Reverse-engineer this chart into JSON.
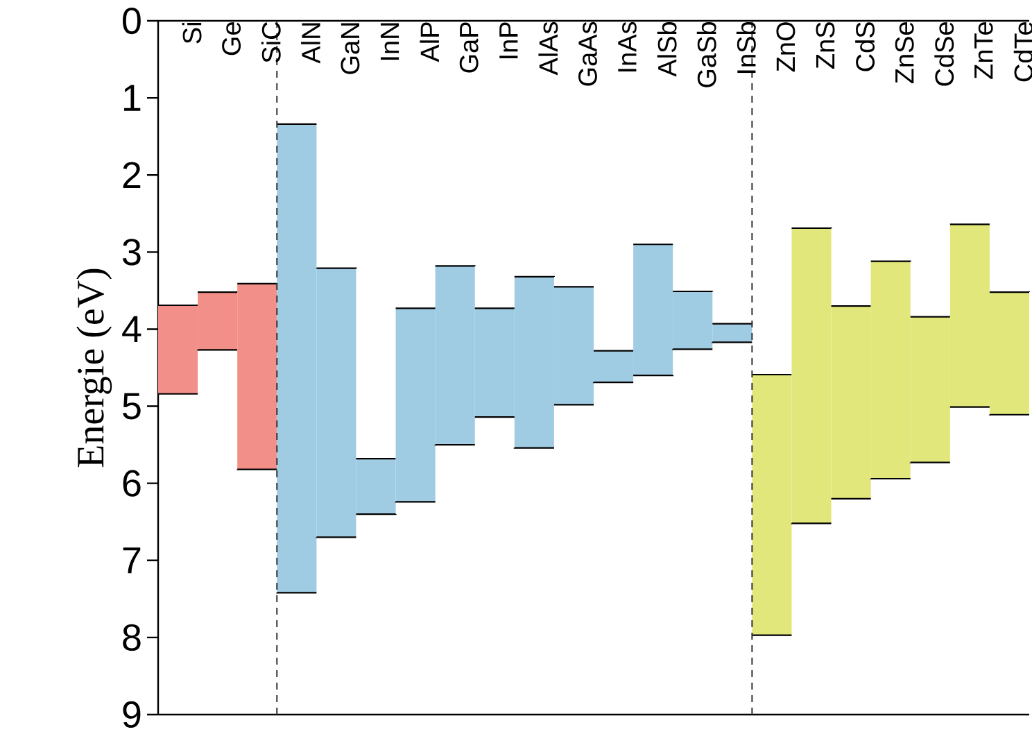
{
  "chart_data": {
    "type": "bar",
    "ylabel": "Energie (eV)",
    "categories": [
      "Si",
      "Ge",
      "SiC",
      "AlN",
      "GaN",
      "InN",
      "AlP",
      "GaP",
      "InP",
      "AlAs",
      "GaAs",
      "InAs",
      "AlSb",
      "GaSb",
      "InSb",
      "ZnO",
      "ZnS",
      "CdS",
      "ZnSe",
      "CdSe",
      "ZnTe",
      "CdTe"
    ],
    "series": [
      {
        "color": "#f28f88",
        "base": [
          3.69,
          3.52,
          3.41,
          null,
          null,
          null,
          null,
          null,
          null,
          null,
          null,
          null,
          null,
          null,
          null,
          null,
          null,
          null,
          null,
          null,
          null,
          null
        ],
        "values": [
          1.15,
          0.75,
          2.41,
          null,
          null,
          null,
          null,
          null,
          null,
          null,
          null,
          null,
          null,
          null,
          null,
          null,
          null,
          null,
          null,
          null,
          null,
          null
        ]
      },
      {
        "color": "#9fcbe3",
        "base": [
          null,
          null,
          null,
          1.34,
          3.21,
          5.68,
          3.73,
          3.18,
          3.73,
          3.32,
          3.45,
          4.28,
          2.9,
          3.51,
          3.93,
          null,
          null,
          null,
          null,
          null,
          null,
          null
        ],
        "values": [
          null,
          null,
          null,
          6.08,
          3.49,
          0.72,
          2.51,
          2.32,
          1.41,
          2.22,
          1.53,
          0.41,
          1.7,
          0.75,
          0.24,
          null,
          null,
          null,
          null,
          null,
          null,
          null
        ]
      },
      {
        "color": "#e1e77a",
        "base": [
          null,
          null,
          null,
          null,
          null,
          null,
          null,
          null,
          null,
          null,
          null,
          null,
          null,
          null,
          null,
          4.59,
          2.69,
          3.7,
          3.12,
          3.84,
          2.64,
          3.52
        ],
        "values": [
          null,
          null,
          null,
          null,
          null,
          null,
          null,
          null,
          null,
          null,
          null,
          null,
          null,
          null,
          null,
          3.38,
          3.83,
          2.5,
          2.82,
          1.89,
          2.37,
          1.59
        ]
      }
    ],
    "ylim": [
      9,
      0
    ],
    "yticks": [
      0,
      1,
      2,
      3,
      4,
      5,
      6,
      7,
      8,
      9
    ]
  }
}
